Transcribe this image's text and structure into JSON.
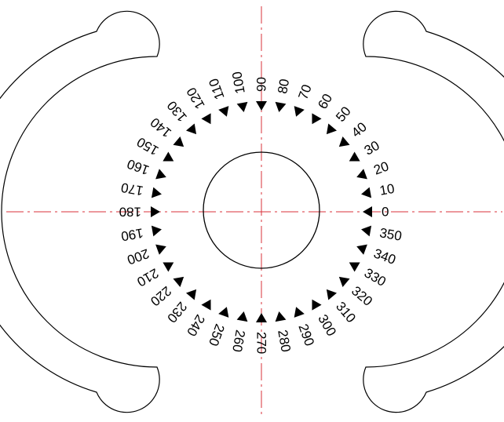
{
  "colors": {
    "line": "#000000",
    "centerline": "#d9303a",
    "background": "#ffffff"
  },
  "dial": {
    "tick_step_deg": 10,
    "labels": [
      "0",
      "10",
      "20",
      "30",
      "40",
      "50",
      "60",
      "70",
      "80",
      "90",
      "100",
      "110",
      "120",
      "130",
      "140",
      "150",
      "160",
      "170",
      "180",
      "190",
      "200",
      "210",
      "220",
      "230",
      "240",
      "250",
      "260",
      "270",
      "280",
      "290",
      "300",
      "310",
      "320",
      "330",
      "340",
      "350"
    ]
  }
}
